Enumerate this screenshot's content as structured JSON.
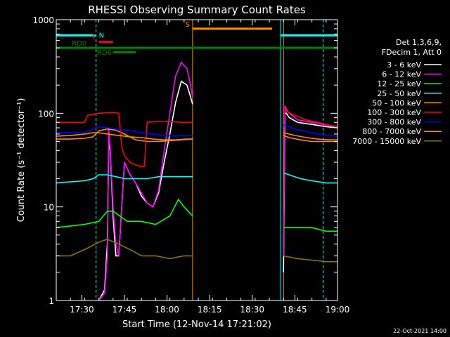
{
  "chart_data": {
    "type": "line",
    "title": "RHESSI Observing Summary Count Rates",
    "xlabel": "Start Time (12-Nov-14 17:21:02)",
    "ylabel": "Count Rate (s⁻¹ detector⁻¹)",
    "y_scale": "log",
    "ylim": [
      1,
      1000
    ],
    "x_unit": "minutes after 17:21:02",
    "xlim": [
      0,
      99
    ],
    "x_ticks": [
      {
        "at": 9,
        "label": "17:30"
      },
      {
        "at": 24,
        "label": "17:45"
      },
      {
        "at": 39,
        "label": "18:00"
      },
      {
        "at": 54,
        "label": "18:15"
      },
      {
        "at": 69,
        "label": "18:30"
      },
      {
        "at": 84,
        "label": "18:45"
      },
      {
        "at": 99,
        "label": "19:00"
      }
    ],
    "y_ticks": [
      {
        "at": 1,
        "label": "1"
      },
      {
        "at": 10,
        "label": "10"
      },
      {
        "at": 100,
        "label": "100"
      },
      {
        "at": 1000,
        "label": "1000"
      }
    ],
    "legend_position": "right",
    "legend_header": [
      "Det 1,3,6,9,",
      "FDecim 1, Att 0"
    ],
    "series": [
      {
        "name": "3 - 6 keV",
        "color": "#ffffff",
        "segments": [
          [
            [
              15,
              1
            ],
            [
              17,
              1.3
            ],
            [
              18,
              4
            ],
            [
              18.5,
              50
            ],
            [
              19,
              40
            ],
            [
              20,
              8
            ],
            [
              21,
              3
            ],
            [
              22,
              3
            ],
            [
              24,
              30
            ],
            [
              26,
              22
            ],
            [
              28,
              18
            ],
            [
              30,
              13
            ],
            [
              32,
              11
            ],
            [
              34,
              10
            ],
            [
              36,
              14
            ],
            [
              38,
              30
            ],
            [
              40,
              60
            ],
            [
              42,
              130
            ],
            [
              44,
              220
            ],
            [
              46,
              200
            ],
            [
              47,
              160
            ],
            [
              48,
              125
            ]
          ],
          [
            [
              80,
              2
            ],
            [
              80.5,
              100
            ],
            [
              81,
              100
            ],
            [
              82,
              90
            ],
            [
              85,
              80
            ],
            [
              90,
              76
            ],
            [
              95,
              72
            ],
            [
              99,
              70
            ]
          ]
        ]
      },
      {
        "name": "6 - 12 keV",
        "color": "#ff00ff",
        "segments": [
          [
            [
              15,
              1
            ],
            [
              17,
              1.2
            ],
            [
              18,
              3
            ],
            [
              18.5,
              70
            ],
            [
              19,
              40
            ],
            [
              20,
              10
            ],
            [
              21,
              4
            ],
            [
              22,
              3
            ],
            [
              24,
              30
            ],
            [
              26,
              22
            ],
            [
              28,
              18
            ],
            [
              30,
              14
            ],
            [
              32,
              11
            ],
            [
              34,
              10
            ],
            [
              36,
              15
            ],
            [
              38,
              40
            ],
            [
              40,
              100
            ],
            [
              42,
              250
            ],
            [
              44,
              350
            ],
            [
              46,
              300
            ],
            [
              47,
              220
            ],
            [
              48,
              150
            ]
          ],
          [
            [
              80,
              3
            ],
            [
              80.5,
              120
            ],
            [
              81,
              110
            ],
            [
              82,
              100
            ],
            [
              85,
              85
            ],
            [
              90,
              80
            ],
            [
              95,
              75
            ],
            [
              99,
              72
            ]
          ]
        ]
      },
      {
        "name": "12 - 25 keV",
        "color": "#00ff00",
        "segments": [
          [
            [
              0,
              6
            ],
            [
              10,
              6.5
            ],
            [
              15,
              7
            ],
            [
              18,
              9
            ],
            [
              20,
              9
            ],
            [
              25,
              7
            ],
            [
              30,
              7
            ],
            [
              35,
              6.5
            ],
            [
              40,
              8
            ],
            [
              43,
              12
            ],
            [
              45,
              10
            ],
            [
              48,
              8
            ]
          ],
          [
            [
              80,
              6
            ],
            [
              85,
              6
            ],
            [
              90,
              6
            ],
            [
              95,
              5.5
            ],
            [
              99,
              5.5
            ]
          ]
        ]
      },
      {
        "name": "25 - 50 keV",
        "color": "#00ffff",
        "segments": [
          [
            [
              0,
              18
            ],
            [
              10,
              19
            ],
            [
              13,
              20
            ],
            [
              15,
              22
            ],
            [
              18,
              22
            ],
            [
              21,
              21
            ],
            [
              24,
              20
            ],
            [
              28,
              20
            ],
            [
              32,
              20
            ],
            [
              36,
              21
            ],
            [
              40,
              21
            ],
            [
              44,
              21
            ],
            [
              48,
              21
            ]
          ],
          [
            [
              80,
              23
            ],
            [
              82,
              22
            ],
            [
              86,
              20
            ],
            [
              90,
              19
            ],
            [
              95,
              18
            ],
            [
              99,
              18
            ]
          ]
        ]
      },
      {
        "name": "50 - 100 keV",
        "color": "#ff8c00",
        "segments": [
          [
            [
              0,
              53
            ],
            [
              5,
              53
            ],
            [
              10,
              54
            ],
            [
              13,
              56
            ],
            [
              15,
              65
            ],
            [
              18,
              68
            ],
            [
              21,
              66
            ],
            [
              24,
              60
            ],
            [
              28,
              52
            ],
            [
              32,
              50
            ],
            [
              36,
              50
            ],
            [
              40,
              51
            ],
            [
              44,
              52
            ],
            [
              48,
              53
            ]
          ],
          [
            [
              80,
              58
            ],
            [
              82,
              55
            ],
            [
              86,
              52
            ],
            [
              90,
              50
            ],
            [
              95,
              50
            ],
            [
              99,
              50
            ]
          ]
        ]
      },
      {
        "name": "100 - 300 keV",
        "color": "#ff0000",
        "segments": [
          [
            [
              0,
              80
            ],
            [
              5,
              80
            ],
            [
              10,
              80
            ],
            [
              11,
              95
            ],
            [
              15,
              100
            ],
            [
              20,
              102
            ],
            [
              22,
              100
            ],
            [
              23,
              45
            ],
            [
              24,
              35
            ],
            [
              26,
              30
            ],
            [
              28,
              28
            ],
            [
              30,
              27
            ],
            [
              31,
              27
            ],
            [
              32,
              80
            ],
            [
              36,
              82
            ],
            [
              40,
              82
            ],
            [
              44,
              80
            ],
            [
              48,
              80
            ]
          ],
          [
            [
              80,
              120
            ],
            [
              81,
              105
            ],
            [
              84,
              95
            ],
            [
              88,
              85
            ],
            [
              92,
              80
            ],
            [
              96,
              75
            ],
            [
              99,
              72
            ]
          ]
        ]
      },
      {
        "name": "300 - 800 keV",
        "color": "#0000ff",
        "segments": [
          [
            [
              0,
              62
            ],
            [
              5,
              62
            ],
            [
              10,
              63
            ],
            [
              13,
              68
            ],
            [
              15,
              72
            ],
            [
              18,
              70
            ],
            [
              22,
              68
            ],
            [
              26,
              65
            ],
            [
              30,
              62
            ],
            [
              34,
              60
            ],
            [
              38,
              58
            ],
            [
              42,
              57
            ],
            [
              46,
              58
            ],
            [
              48,
              58
            ]
          ],
          [
            [
              80,
              75
            ],
            [
              84,
              68
            ],
            [
              88,
              64
            ],
            [
              92,
              60
            ],
            [
              96,
              58
            ],
            [
              99,
              57
            ]
          ]
        ]
      },
      {
        "name": "800 - 7000 keV",
        "color": "#ff8c00",
        "segments": [
          [
            [
              0,
              57
            ],
            [
              5,
              58
            ],
            [
              10,
              60
            ],
            [
              13,
              62
            ],
            [
              15,
              62
            ],
            [
              18,
              60
            ],
            [
              22,
              58
            ],
            [
              26,
              56
            ],
            [
              30,
              55
            ],
            [
              34,
              53
            ],
            [
              38,
              52
            ],
            [
              42,
              52
            ],
            [
              46,
              53
            ],
            [
              48,
              53
            ]
          ],
          [
            [
              80,
              62
            ],
            [
              84,
              58
            ],
            [
              88,
              55
            ],
            [
              92,
              53
            ],
            [
              96,
              52
            ],
            [
              99,
              52
            ]
          ]
        ]
      },
      {
        "name": "7000 - 15000 keV",
        "color": "#8b7300",
        "segments": [
          [
            [
              0,
              3
            ],
            [
              5,
              3
            ],
            [
              10,
              3.5
            ],
            [
              15,
              4.2
            ],
            [
              18,
              4.5
            ],
            [
              22,
              4
            ],
            [
              26,
              3.5
            ],
            [
              30,
              3
            ],
            [
              35,
              3
            ],
            [
              40,
              2.8
            ],
            [
              45,
              3
            ],
            [
              48,
              3
            ]
          ],
          [
            [
              80,
              3
            ],
            [
              85,
              2.8
            ],
            [
              90,
              2.7
            ],
            [
              95,
              2.6
            ],
            [
              99,
              2.6
            ]
          ]
        ]
      }
    ],
    "night_markers": [
      {
        "at": 14,
        "style": "dashed"
      },
      {
        "at": 79,
        "style": "solid"
      },
      {
        "at": 94,
        "style": "dashed"
      }
    ],
    "flag_bars": [
      {
        "label": "N",
        "color": "#00ffff",
        "start": 0,
        "end": 14,
        "level": 680
      },
      {
        "label": "",
        "color": "#00ffff",
        "start": 79,
        "end": 99,
        "level": 680
      },
      {
        "label": "S",
        "color": "#ff8c00",
        "start": 48,
        "end": 76,
        "level": 800
      },
      {
        "label": "F",
        "color": "#ff0000",
        "start": 15,
        "end": 20,
        "level": 580
      },
      {
        "label": "RD0",
        "color": "#008000",
        "start": 0,
        "end": 99,
        "level": 500
      },
      {
        "label": "RD6",
        "color": "#008000",
        "start": 20,
        "end": 28,
        "level": 450
      }
    ],
    "saa_lines": [
      {
        "at": 48,
        "color": "#ff8c00"
      },
      {
        "at": 80,
        "color": "#ff8c00"
      }
    ]
  },
  "footer": {
    "date": "22-Oct-2021 14:00"
  }
}
